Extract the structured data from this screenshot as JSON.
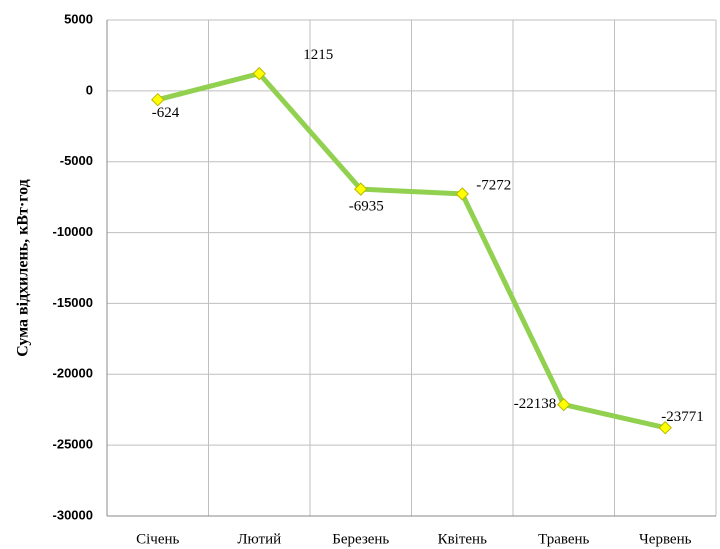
{
  "chart_data": {
    "type": "line",
    "y_label": "Сума відхилень, кВт·год",
    "categories": [
      "Січень",
      "Лютий",
      "Березень",
      "Квітень",
      "Травень",
      "Червень"
    ],
    "series": [
      {
        "name": "Сума відхилень",
        "color": "#92d050",
        "marker_color": "#ffff00",
        "values": [
          -624,
          1215,
          -6935,
          -7272,
          -22138,
          -23771
        ]
      }
    ],
    "ylim": [
      -30000,
      5000
    ],
    "yticks": [
      -30000,
      -25000,
      -20000,
      -15000,
      -10000,
      -5000,
      0,
      5000
    ],
    "grid": true
  }
}
